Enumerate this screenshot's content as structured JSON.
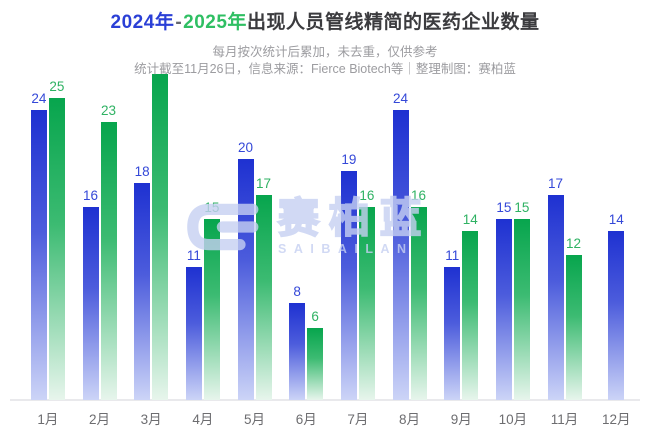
{
  "header": {
    "title_part_2024": "2024年",
    "title_dash": "-",
    "title_part_2025": "2025年",
    "title_rest": "出现人员管线精简的医药企业数量",
    "subtitle_line1": "每月按次统计后累加，未去重，仅供参考",
    "subtitle_line2": "统计截至11月26日，信息来源：Fierce Biotech等｜整理制图：赛柏蓝"
  },
  "colors": {
    "year_2024": "#2a3fd6",
    "year_2025": "#2fbf63",
    "title_text": "#3b3b3e",
    "subtitle_text": "#9c9ca0",
    "axis_line": "#e9e9ec",
    "month_label": "#6d6d70",
    "watermark": "#c6d0f2"
  },
  "watermark": {
    "logo": "saibailan-logo",
    "cn": "赛柏蓝",
    "en": "SAIBAILAN"
  },
  "chart_data": {
    "type": "bar",
    "title": "2024年-2025年出现人员管线精简的医药企业数量",
    "categories": [
      "1月",
      "2月",
      "3月",
      "4月",
      "5月",
      "6月",
      "7月",
      "8月",
      "9月",
      "10月",
      "11月",
      "12月"
    ],
    "series": [
      {
        "name": "2024年",
        "values": [
          24,
          16,
          18,
          11,
          20,
          8,
          19,
          24,
          11,
          15,
          17,
          14
        ],
        "color_top": "#1e31d1",
        "color_mid": "#4c5cdc",
        "color_bottom": "#ccd4f7",
        "label_color": "#3448d8",
        "hidden_label_indices": []
      },
      {
        "name": "2025年",
        "values": [
          25,
          23,
          27,
          15,
          17,
          6,
          16,
          16,
          14,
          15,
          12,
          null
        ],
        "color_top": "#07a54d",
        "color_mid": "#3cbb72",
        "color_bottom": "#e7f5ec",
        "label_color": "#2fb263",
        "hidden_label_indices": [
          2
        ]
      }
    ],
    "ylim": [
      0,
      27
    ],
    "grid": false,
    "legend_position": "none",
    "value_labels": "above-bars"
  }
}
